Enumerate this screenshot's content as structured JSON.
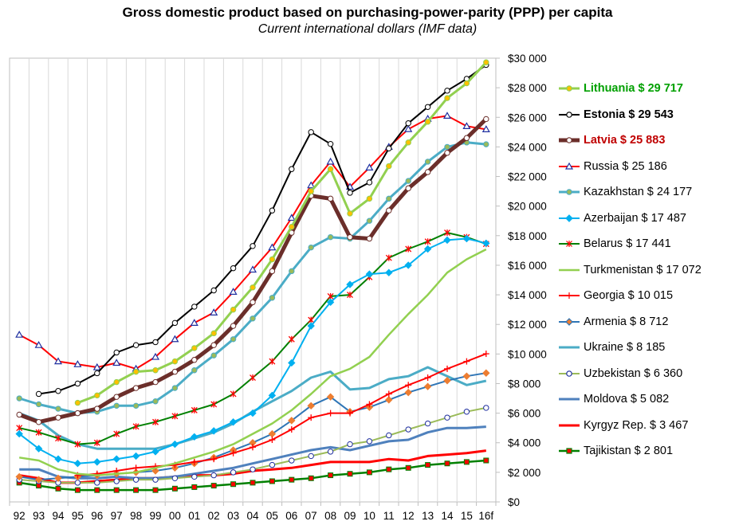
{
  "chart_data": {
    "type": "line",
    "title": "Gross domestic product based on purchasing-power-parity (PPP) per capita",
    "subtitle": "Current international dollars (IMF data)",
    "categories": [
      "92",
      "93",
      "94",
      "95",
      "96",
      "97",
      "98",
      "99",
      "00",
      "01",
      "02",
      "03",
      "04",
      "05",
      "06",
      "07",
      "08",
      "09",
      "10",
      "11",
      "12",
      "13",
      "14",
      "15",
      "16f"
    ],
    "y_tick_labels": [
      "$0",
      "$2 000",
      "$4 000",
      "$6 000",
      "$8 000",
      "$10 000",
      "$12 000",
      "$14 000",
      "$16 000",
      "$18 000",
      "$20 000",
      "$22 000",
      "$24 000",
      "$26 000",
      "$28 000",
      "$30 000"
    ],
    "ylim": [
      0,
      30000
    ],
    "y_axis_side": "right",
    "gridlines": "vertical",
    "legend_position": "right",
    "series": [
      {
        "name": "Lithuania",
        "label": "Lithuania $ 29 717",
        "color": "#92d050",
        "marker": "circle",
        "marker_fill": "#ffc000",
        "width": 3,
        "bold": true,
        "label_color": "#00a000",
        "values": [
          null,
          null,
          null,
          6700,
          7200,
          8100,
          8800,
          8900,
          9500,
          10400,
          11400,
          13000,
          14500,
          16400,
          18600,
          21000,
          22500,
          19500,
          20500,
          22700,
          24300,
          25700,
          27300,
          28300,
          29717
        ]
      },
      {
        "name": "Estonia",
        "label": "Estonia $ 29 543",
        "color": "#000000",
        "marker": "circle",
        "marker_fill": "#ffffff",
        "width": 2,
        "bold": true,
        "label_color": "#000000",
        "values": [
          null,
          7300,
          7500,
          8000,
          8700,
          10100,
          10600,
          10800,
          12100,
          13200,
          14300,
          15800,
          17300,
          19700,
          22500,
          25000,
          24200,
          20900,
          21600,
          23900,
          25600,
          26700,
          27800,
          28600,
          29543
        ]
      },
      {
        "name": "Latvia",
        "label": "Latvia $ 25 883",
        "color": "#6b2e2a",
        "marker": "circle",
        "marker_fill": "#ffffff",
        "width": 5,
        "bold": true,
        "label_color": "#c00000",
        "values": [
          5900,
          5400,
          5700,
          6000,
          6300,
          7100,
          7700,
          8100,
          8800,
          9600,
          10600,
          11900,
          13500,
          15600,
          18200,
          20700,
          20500,
          17900,
          17800,
          19700,
          21200,
          22300,
          23600,
          24600,
          25883
        ]
      },
      {
        "name": "Russia",
        "label": "Russia $ 25 186",
        "color": "#ff0000",
        "marker": "triangle",
        "marker_fill": "#ffffff",
        "marker_stroke": "#2030a0",
        "width": 2,
        "bold": false,
        "values": [
          11300,
          10600,
          9500,
          9300,
          9100,
          9400,
          9000,
          9800,
          11000,
          12100,
          12800,
          14200,
          15700,
          17200,
          19200,
          21400,
          23000,
          21300,
          22600,
          24000,
          25200,
          25900,
          26100,
          25400,
          25186
        ]
      },
      {
        "name": "Kazakhstan",
        "label": "Kazakhstan $ 24 177",
        "color": "#4bacc6",
        "marker": "circle",
        "marker_fill": "#9bbb59",
        "width": 3,
        "bold": false,
        "values": [
          7000,
          6600,
          6300,
          6000,
          6100,
          6500,
          6500,
          6800,
          7700,
          8900,
          9900,
          11000,
          12400,
          13800,
          15600,
          17200,
          17900,
          17800,
          19000,
          20500,
          21700,
          23000,
          24000,
          24300,
          24177
        ]
      },
      {
        "name": "Azerbaijan",
        "label": "Azerbaijan $ 17 487",
        "color": "#00b0f0",
        "marker": "diamond",
        "marker_fill": "#00b0f0",
        "width": 2,
        "bold": false,
        "values": [
          4600,
          3600,
          2900,
          2600,
          2700,
          2900,
          3100,
          3400,
          3900,
          4400,
          4800,
          5400,
          6000,
          7200,
          9400,
          11900,
          13500,
          14700,
          15400,
          15500,
          16000,
          17100,
          17700,
          17800,
          17487
        ]
      },
      {
        "name": "Belarus",
        "label": "Belarus $ 17 441",
        "color": "#008000",
        "marker": "star",
        "marker_fill": "#ff0000",
        "width": 2,
        "bold": false,
        "values": [
          5000,
          4700,
          4300,
          3900,
          4000,
          4600,
          5100,
          5400,
          5800,
          6200,
          6600,
          7300,
          8400,
          9500,
          11000,
          12300,
          13900,
          14000,
          15200,
          16500,
          17100,
          17600,
          18200,
          17900,
          17441
        ]
      },
      {
        "name": "Turkmenistan",
        "label": "Turkmenistan $ 17 072",
        "color": "#92d050",
        "marker": "none",
        "width": 2.5,
        "bold": false,
        "values": [
          3000,
          2800,
          2200,
          1900,
          1800,
          1900,
          2000,
          2300,
          2600,
          3000,
          3400,
          3900,
          4600,
          5300,
          6200,
          7300,
          8500,
          9000,
          9800,
          11300,
          12700,
          14000,
          15500,
          16400,
          17072
        ]
      },
      {
        "name": "Georgia",
        "label": "Georgia $ 10 015",
        "color": "#ff0000",
        "marker": "plus",
        "marker_fill": "#ff0000",
        "width": 2,
        "bold": false,
        "values": [
          null,
          null,
          null,
          1800,
          1900,
          2100,
          2300,
          2400,
          2500,
          2700,
          2900,
          3300,
          3700,
          4200,
          4900,
          5700,
          6000,
          6000,
          6600,
          7300,
          7900,
          8400,
          9000,
          9500,
          10015
        ]
      },
      {
        "name": "Armenia",
        "label": "Armenia $ 8 712",
        "color": "#2e75b6",
        "marker": "diamond",
        "marker_fill": "#ed7d31",
        "width": 2,
        "bold": false,
        "values": [
          1700,
          1500,
          1600,
          1700,
          1800,
          1900,
          2000,
          2100,
          2300,
          2600,
          3000,
          3500,
          4000,
          4600,
          5500,
          6500,
          7100,
          6100,
          6400,
          6900,
          7400,
          7800,
          8200,
          8500,
          8712
        ]
      },
      {
        "name": "Ukraine",
        "label": "Ukraine $ 8 185",
        "color": "#4bacc6",
        "marker": "none",
        "width": 3,
        "bold": false,
        "values": [
          6000,
          5500,
          4500,
          3900,
          3600,
          3600,
          3600,
          3600,
          3900,
          4300,
          4700,
          5300,
          6100,
          6800,
          7500,
          8400,
          8800,
          7600,
          7700,
          8300,
          8500,
          9100,
          8500,
          7900,
          8185
        ]
      },
      {
        "name": "Uzbekistan",
        "label": "Uzbekistan $ 6 360",
        "color": "#9bbb59",
        "marker": "circle",
        "marker_fill": "#ffffff",
        "marker_stroke": "#2030a0",
        "width": 2,
        "bold": false,
        "values": [
          1500,
          1400,
          1300,
          1300,
          1300,
          1400,
          1500,
          1500,
          1600,
          1700,
          1800,
          2000,
          2200,
          2500,
          2800,
          3100,
          3400,
          3900,
          4100,
          4500,
          4900,
          5300,
          5700,
          6100,
          6360
        ]
      },
      {
        "name": "Moldova",
        "label": "Moldova $ 5 082",
        "color": "#4f81bd",
        "marker": "none",
        "width": 3,
        "bold": false,
        "values": [
          2200,
          2200,
          1700,
          1600,
          1600,
          1700,
          1600,
          1600,
          1700,
          1900,
          2100,
          2300,
          2600,
          2900,
          3200,
          3500,
          3700,
          3500,
          3800,
          4100,
          4200,
          4700,
          5000,
          5000,
          5082
        ]
      },
      {
        "name": "Kyrgyz Rep.",
        "label": "Kyrgyz Rep. $ 3 467",
        "color": "#ff0000",
        "marker": "none",
        "width": 3,
        "bold": false,
        "values": [
          1800,
          1600,
          1300,
          1300,
          1400,
          1500,
          1600,
          1600,
          1700,
          1800,
          1800,
          1900,
          2100,
          2200,
          2300,
          2500,
          2700,
          2700,
          2700,
          2900,
          2800,
          3100,
          3200,
          3300,
          3467
        ]
      },
      {
        "name": "Tajikistan",
        "label": "Tajikistan $ 2 801",
        "color": "#008000",
        "marker": "square",
        "marker_fill": "#ff0000",
        "width": 2.5,
        "bold": false,
        "values": [
          1300,
          1100,
          900,
          800,
          800,
          800,
          800,
          800,
          900,
          1000,
          1100,
          1200,
          1300,
          1400,
          1500,
          1600,
          1800,
          1900,
          2000,
          2200,
          2300,
          2500,
          2600,
          2700,
          2801
        ]
      }
    ]
  }
}
